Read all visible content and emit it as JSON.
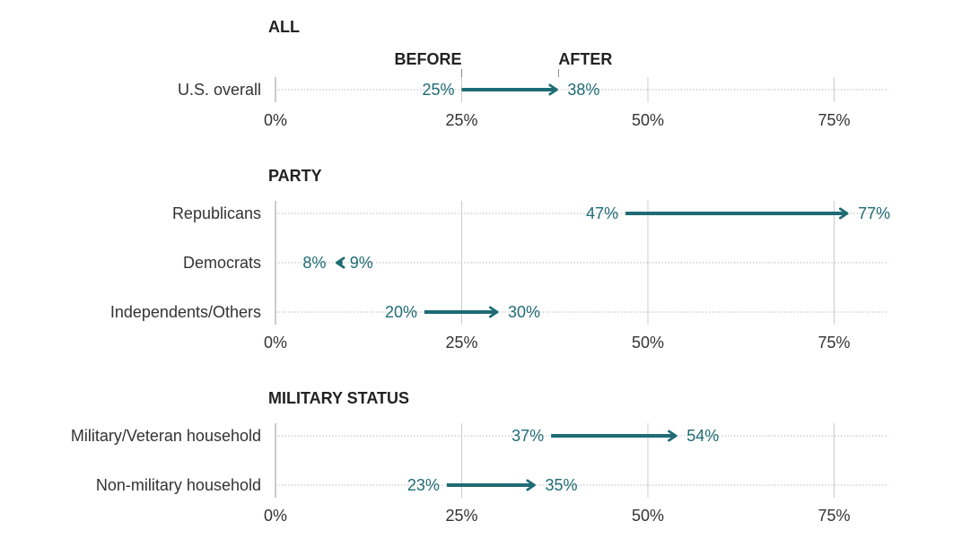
{
  "chart_data": {
    "type": "arrow",
    "colors": {
      "arrow": "#1f6b75",
      "value_text": "#1f6b75",
      "text": "#333333",
      "grid": "#cccccc"
    },
    "x_ticks": [
      {
        "value": 0,
        "label": "0%"
      },
      {
        "value": 25,
        "label": "25%"
      },
      {
        "value": 50,
        "label": "50%"
      },
      {
        "value": 75,
        "label": "75%"
      }
    ],
    "before_label": "BEFORE",
    "after_label": "AFTER",
    "sections": [
      {
        "title": "ALL",
        "rows": [
          {
            "label": "U.S. overall",
            "before": 25,
            "after": 38,
            "before_label": "25%",
            "after_label": "38%"
          }
        ]
      },
      {
        "title": "PARTY",
        "rows": [
          {
            "label": "Republicans",
            "before": 47,
            "after": 77,
            "before_label": "47%",
            "after_label": "77%"
          },
          {
            "label": "Democrats",
            "before": 9,
            "after": 8,
            "before_label": "9%",
            "after_label": "8%"
          },
          {
            "label": "Independents/Others",
            "before": 20,
            "after": 30,
            "before_label": "20%",
            "after_label": "30%"
          }
        ]
      },
      {
        "title": "MILITARY STATUS",
        "rows": [
          {
            "label": "Military/Veteran household",
            "before": 37,
            "after": 54,
            "before_label": "37%",
            "after_label": "54%"
          },
          {
            "label": "Non-military household",
            "before": 23,
            "after": 35,
            "before_label": "23%",
            "after_label": "35%"
          }
        ]
      }
    ]
  }
}
